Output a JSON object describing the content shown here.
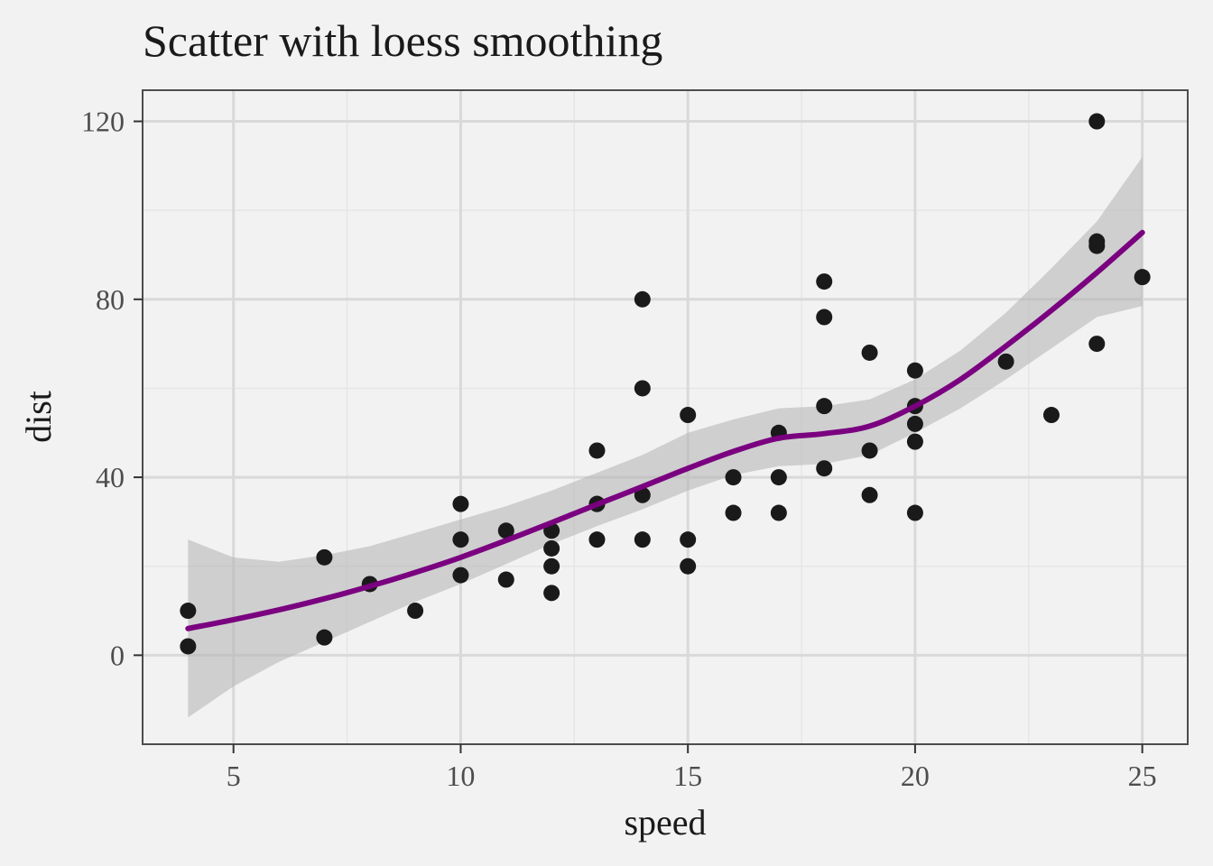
{
  "chart_data": {
    "type": "scatter",
    "title": "Scatter with loess smoothing",
    "xlabel": "speed",
    "ylabel": "dist",
    "xlim": [
      3,
      26
    ],
    "ylim": [
      -20,
      127
    ],
    "x_ticks": [
      5,
      10,
      15,
      20,
      25
    ],
    "y_ticks": [
      0,
      40,
      80,
      120
    ],
    "x_minor_ticks": [
      7.5,
      12.5,
      17.5,
      22.5
    ],
    "y_minor_ticks": [
      20,
      60,
      100
    ],
    "grid": true,
    "colors": {
      "points": "#1a1a1a",
      "smooth_line": "#7a0080",
      "ribbon": "#b3b3b3",
      "background": "#f2f2f2",
      "grid_major": "#d9d9d9",
      "grid_minor": "#e6e6e6",
      "panel_border": "#4d4d4d"
    },
    "points": {
      "x": [
        4,
        4,
        7,
        7,
        8,
        9,
        10,
        10,
        10,
        11,
        11,
        12,
        12,
        12,
        12,
        13,
        13,
        13,
        13,
        14,
        14,
        14,
        14,
        15,
        15,
        15,
        16,
        16,
        17,
        17,
        17,
        18,
        18,
        18,
        18,
        19,
        19,
        19,
        20,
        20,
        20,
        20,
        20,
        22,
        23,
        24,
        24,
        24,
        24,
        25
      ],
      "y": [
        2,
        10,
        4,
        22,
        16,
        10,
        18,
        26,
        34,
        17,
        28,
        14,
        20,
        24,
        28,
        26,
        34,
        34,
        46,
        26,
        36,
        60,
        80,
        20,
        26,
        54,
        32,
        40,
        32,
        40,
        50,
        42,
        56,
        76,
        84,
        36,
        46,
        68,
        32,
        48,
        52,
        56,
        64,
        66,
        54,
        70,
        92,
        93,
        120,
        85
      ]
    },
    "smooth": {
      "x": [
        4,
        5,
        6,
        7,
        8,
        9,
        10,
        11,
        12,
        13,
        14,
        15,
        16,
        17,
        18,
        19,
        20,
        21,
        22,
        23,
        24,
        25
      ],
      "y": [
        6,
        8,
        10.2,
        12.7,
        15.5,
        18.6,
        22,
        25.8,
        29.8,
        33.9,
        37.9,
        42,
        45.8,
        48.8,
        49.8,
        51.5,
        56,
        62,
        69.5,
        77.5,
        86,
        95
      ],
      "lower": [
        -14,
        -7,
        -1.5,
        3,
        7.5,
        12,
        16,
        20.5,
        25,
        29,
        32.8,
        37,
        40.5,
        42.5,
        43,
        45,
        50,
        55.5,
        62,
        69,
        76,
        78.5
      ],
      "upper": [
        26,
        22,
        21,
        22.5,
        24.5,
        27.5,
        30.5,
        33.5,
        37,
        41,
        45,
        50,
        53,
        55.5,
        56,
        57.5,
        62,
        68.5,
        77,
        87,
        97.5,
        112
      ]
    }
  }
}
